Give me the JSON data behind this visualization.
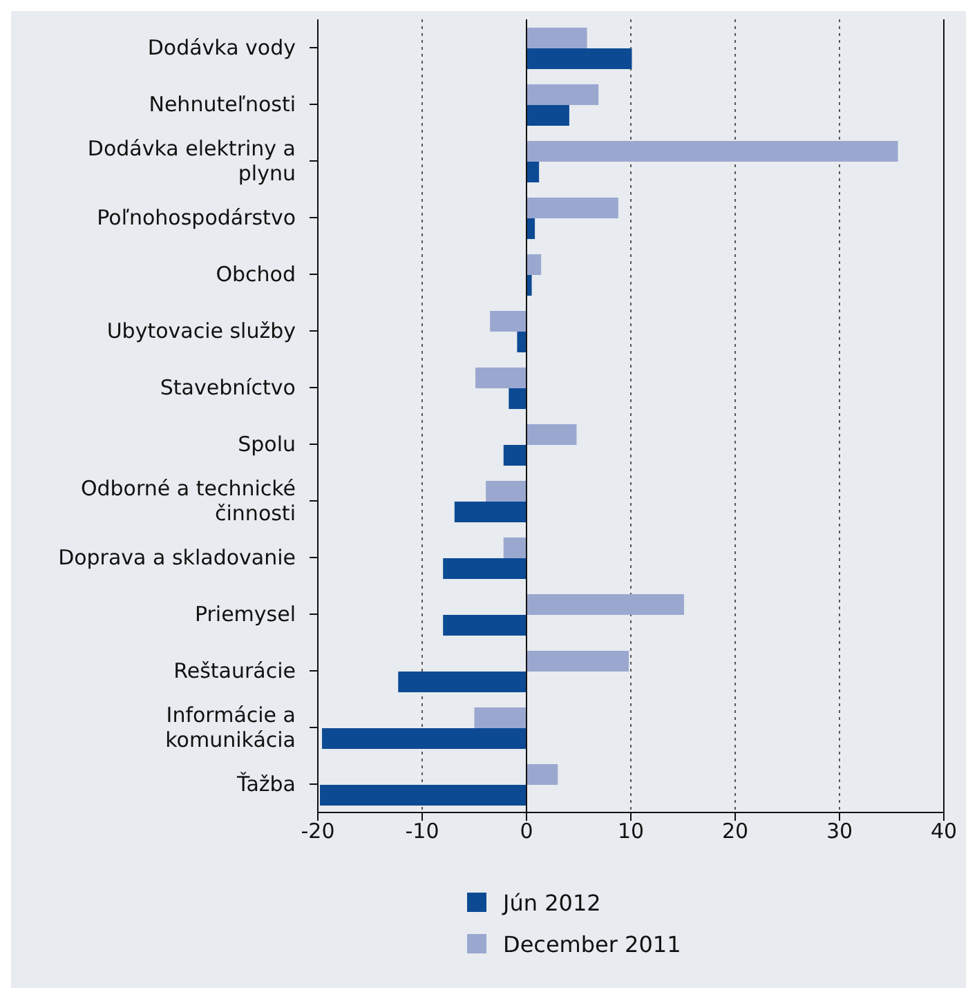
{
  "chart_data": {
    "type": "bar",
    "orientation": "horizontal",
    "categories": [
      "Dodávka vody",
      "Nehnuteľnosti",
      "Dodávka elektriny a plynu",
      "Poľnohospodárstvo",
      "Obchod",
      "Ubytovacie služby",
      "Stavebníctvo",
      "Spolu",
      "Odborné a technické činnosti",
      "Doprava a skladovanie",
      "Priemysel",
      "Reštaurácie",
      "Informácie a komunikácia",
      "Ťažba"
    ],
    "series": [
      {
        "name": "Jún 2012",
        "color": "#0d4a94",
        "values": [
          10.1,
          4.1,
          1.2,
          0.8,
          0.5,
          -0.9,
          -1.7,
          -2.2,
          -6.9,
          -8.0,
          -8.0,
          -12.3,
          -19.6,
          -19.8
        ]
      },
      {
        "name": "December 2011",
        "color": "#9aa8d0",
        "values": [
          5.8,
          6.9,
          35.6,
          8.8,
          1.4,
          -3.5,
          -4.9,
          4.8,
          -3.9,
          -2.2,
          15.1,
          9.8,
          -5.0,
          3.0
        ]
      }
    ],
    "xlim": [
      -20,
      40
    ],
    "xticks": [
      -20,
      -10,
      0,
      10,
      20,
      30,
      40
    ],
    "grid": "x",
    "legend": "bottom"
  }
}
